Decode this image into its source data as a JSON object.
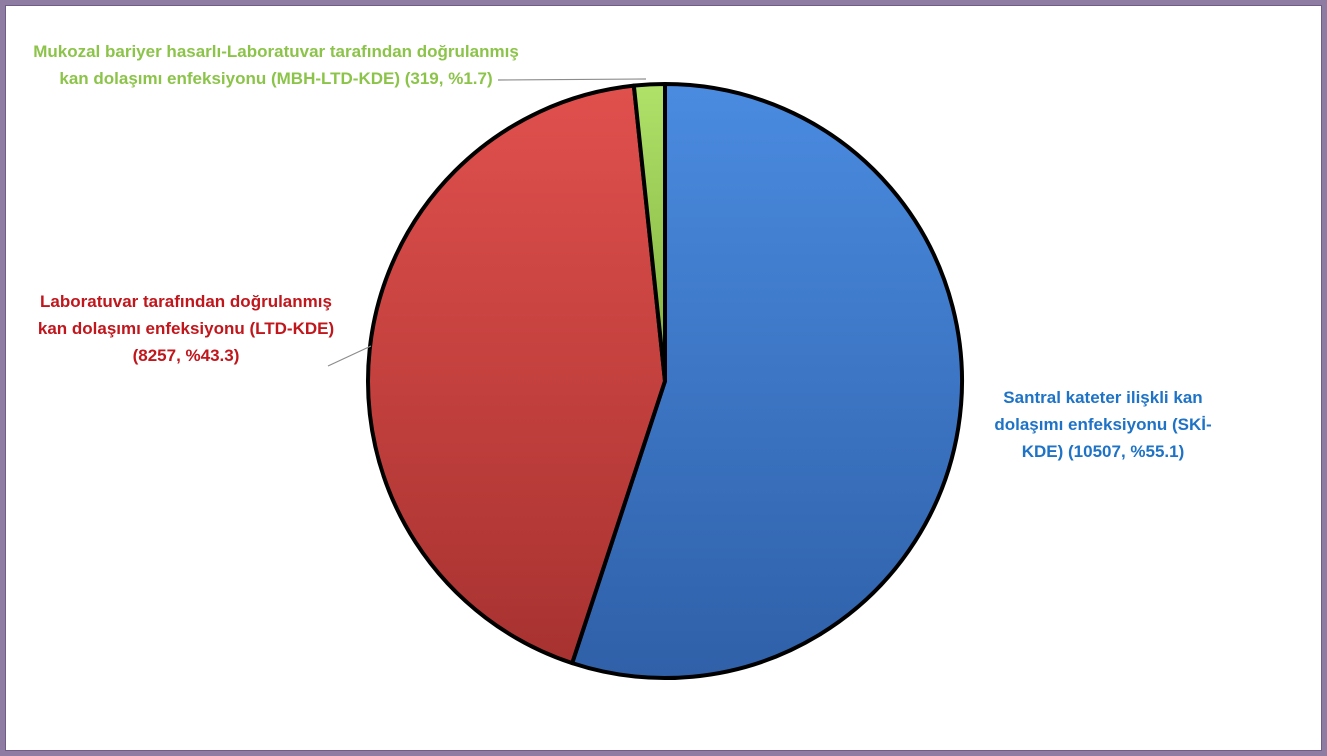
{
  "chart_data": {
    "type": "pie",
    "title": "",
    "slices": [
      {
        "label": "Santral kateter ilişkli kan dolaşımı enfeksiyonu (SKİ-KDE) (10507, %55.1)",
        "value": 10507,
        "percent": 55.1,
        "color": "#3d78cc",
        "label_color": "#1e73c6"
      },
      {
        "label": "Laboratuvar tarafından doğrulanmış kan dolaşımı enfeksiyonu (LTD-KDE) (8257, %43.3)",
        "value": 8257,
        "percent": 43.3,
        "color": "#c83c3a",
        "label_color": "#c0161c"
      },
      {
        "label": "Mukozal bariyer hasarlı-Laboratuvar tarafından doğrulanmış kan dolaşımı enfeksiyonu (MBH-LTD-KDE) (319, %1.7)",
        "value": 319,
        "percent": 1.7,
        "color": "#92c84a",
        "label_color": "#8cc44a"
      }
    ],
    "start_angle": "12 o'clock",
    "direction": "clockwise",
    "legend": "none",
    "data_labels": "outside"
  }
}
